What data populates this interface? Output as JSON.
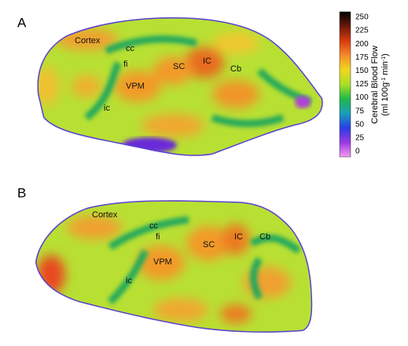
{
  "panels": [
    {
      "letter": "A",
      "labels": [
        "Cortex",
        "cc",
        "fi",
        "SC",
        "IC",
        "Cb",
        "VPM",
        "ic"
      ]
    },
    {
      "letter": "B",
      "labels": [
        "Cortex",
        "cc",
        "fi",
        "SC",
        "IC",
        "Cb",
        "VPM",
        "ic"
      ]
    }
  ],
  "colorbar": {
    "title": "Cerebral Blood Flow",
    "unit": [
      "(ml 100g",
      "-1",
      " min",
      "-1",
      ")"
    ],
    "ticks": [
      250,
      225,
      200,
      175,
      150,
      125,
      100,
      75,
      50,
      25,
      0
    ]
  }
}
